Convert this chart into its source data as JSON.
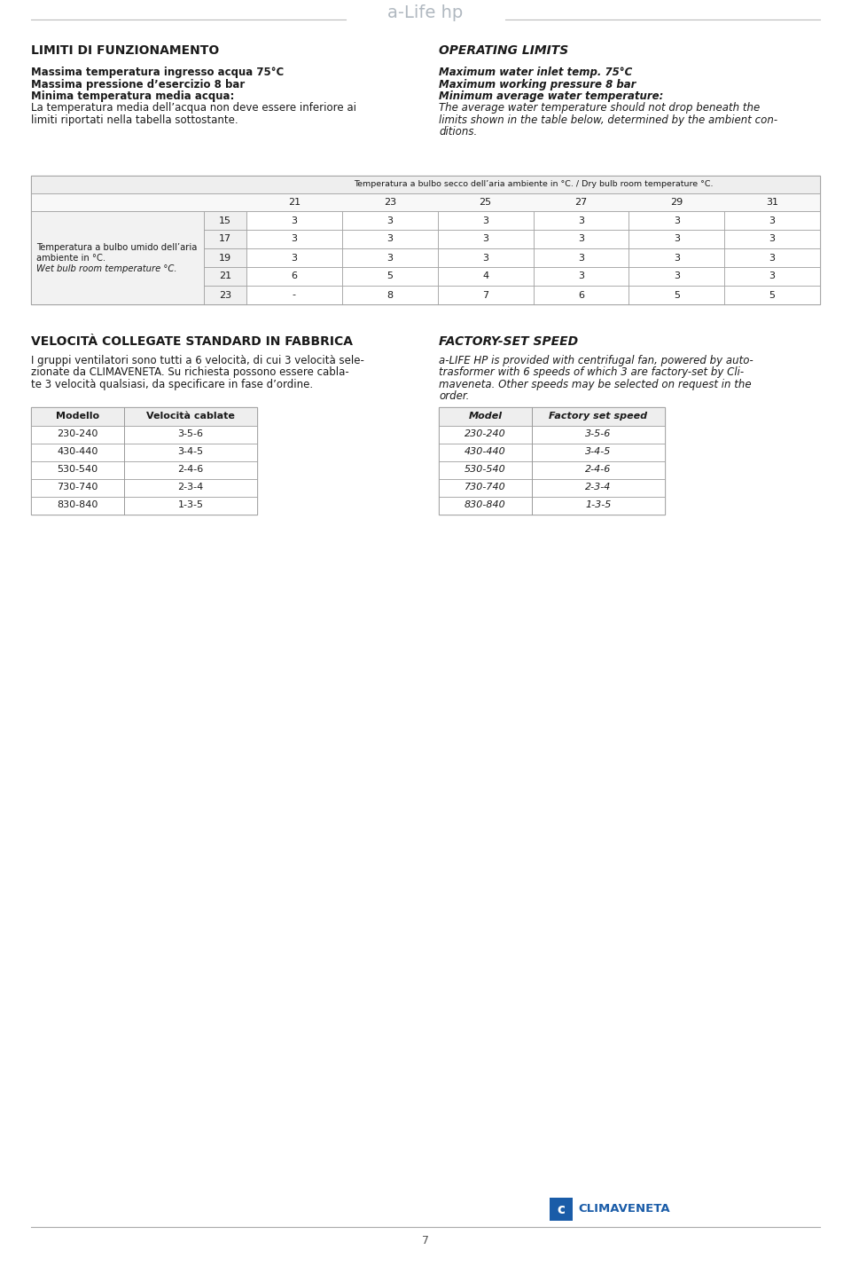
{
  "page_bg": "#ffffff",
  "logo_text": "a-Life hp",
  "page_number": "7",
  "left_title": "LIMITI DI FUNZIONAMENTO",
  "right_title": "OPERATING LIMITS",
  "left_bold_lines": [
    "Massima temperatura ingresso acqua 75°C",
    "Massima pressione d’esercizio 8 bar",
    "Minima temperatura media acqua:"
  ],
  "left_normal_lines": [
    "La temperatura media dell’acqua non deve essere inferiore ai",
    "limiti riportati nella tabella sottostante."
  ],
  "right_bold_lines": [
    "Maximum water inlet temp. 75°C",
    "Maximum working pressure 8 bar",
    "Minimum average water temperature:"
  ],
  "right_italic_lines": [
    "The average water temperature should not drop beneath the",
    "limits shown in the table below, determined by the ambient con-",
    "ditions."
  ],
  "table1_header_row1": "Temperatura a bulbo secco dell’aria ambiente in °C. / Dry bulb room temperature °C.",
  "table1_header_row2": [
    "21",
    "23",
    "25",
    "27",
    "29",
    "31"
  ],
  "table1_row_label_lines": [
    "Temperatura a bulbo umido dell’aria",
    "ambiente in °C.",
    "Wet bulb room temperature °C."
  ],
  "table1_row_temps": [
    "15",
    "17",
    "19",
    "21",
    "23"
  ],
  "table1_data": [
    [
      "3",
      "3",
      "3",
      "3",
      "3",
      "3"
    ],
    [
      "3",
      "3",
      "3",
      "3",
      "3",
      "3"
    ],
    [
      "3",
      "3",
      "3",
      "3",
      "3",
      "3"
    ],
    [
      "6",
      "5",
      "4",
      "3",
      "3",
      "3"
    ],
    [
      "-",
      "8",
      "7",
      "6",
      "5",
      "5"
    ]
  ],
  "section2_left_title": "VELOCITÀ COLLEGATE STANDARD IN FABBRICA",
  "section2_right_title": "FACTORY-SET SPEED",
  "section2_left_lines": [
    "I gruppi ventilatori sono tutti a 6 velocità, di cui 3 velocità sele-",
    "zionate da CLIMAVENETA. Su richiesta possono essere cabla-",
    "te 3 velocità qualsiasi, da specificare in fase d’ordine."
  ],
  "section2_right_lines": [
    "a-LIFE HP is provided with centrifugal fan, powered by auto-",
    "trasformer with 6 speeds of which 3 are factory-set by Cli-",
    "maveneta. Other speeds may be selected on request in the",
    "order."
  ],
  "table2_left_header": [
    "Modello",
    "Velocità cablate"
  ],
  "table2_right_header": [
    "Model",
    "Factory set speed"
  ],
  "table2_rows": [
    [
      "230-240",
      "3-5-6"
    ],
    [
      "430-440",
      "3-4-5"
    ],
    [
      "530-540",
      "2-4-6"
    ],
    [
      "730-740",
      "2-3-4"
    ],
    [
      "830-840",
      "1-3-5"
    ]
  ],
  "climaveneta_logo_text": "CLIMAVENETA",
  "climaveneta_logo_color": "#1a5ca8",
  "climaveneta_box_color": "#1a5ca8"
}
